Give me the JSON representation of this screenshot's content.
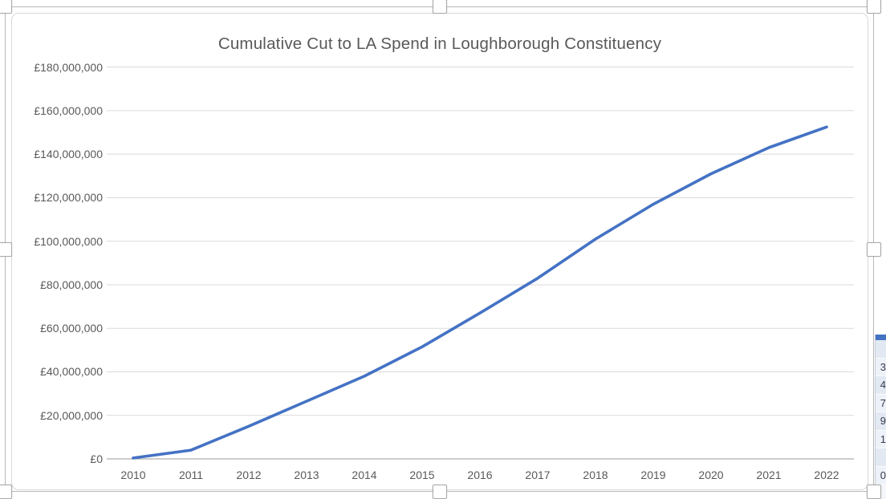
{
  "chart_data": {
    "type": "line",
    "title": "Cumulative Cut to LA Spend in Loughborough Constituency",
    "categories": [
      "2010",
      "2011",
      "2012",
      "2013",
      "2014",
      "2015",
      "2016",
      "2017",
      "2018",
      "2019",
      "2020",
      "2021",
      "2022"
    ],
    "series": [
      {
        "name": "Cumulative cut to LA spend",
        "values": [
          400000,
          4000000,
          15000000,
          26500000,
          38000000,
          51500000,
          67000000,
          83000000,
          101000000,
          117000000,
          131000000,
          143000000,
          152500000
        ]
      }
    ],
    "xlabel": "",
    "ylabel": "",
    "ylim": [
      0,
      180000000
    ],
    "ytick_step": 20000000,
    "ytick_labels": [
      "£0",
      "£20,000,000",
      "£40,000,000",
      "£60,000,000",
      "£80,000,000",
      "£100,000,000",
      "£120,000,000",
      "£140,000,000",
      "£160,000,000",
      "£180,000,000"
    ],
    "grid": true,
    "legend": "none",
    "line_color": "#4472C4",
    "gridline_color": "#D9D9D9",
    "axis_line_color": "#ADADAD",
    "text_color": "#595959"
  },
  "selection": {
    "handles": [
      "top-left",
      "top-center",
      "top-right",
      "middle-left",
      "middle-right",
      "bottom-left",
      "bottom-center",
      "bottom-right"
    ]
  },
  "sheet_sliver": {
    "header_color": "#4472C4",
    "rows": [
      {
        "text": ""
      },
      {
        "text": "3"
      },
      {
        "text": "4"
      },
      {
        "text": "7"
      },
      {
        "text": "9"
      },
      {
        "text": "1"
      },
      {
        "text": ""
      },
      {
        "text": "0"
      }
    ]
  }
}
